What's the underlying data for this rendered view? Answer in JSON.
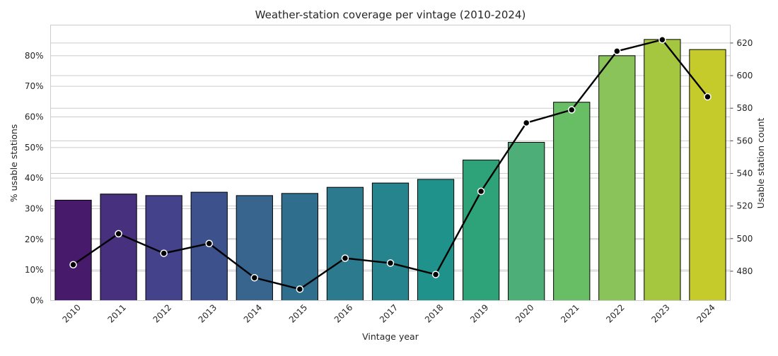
{
  "chart_data": {
    "type": "bar",
    "title": "Weather-station coverage per vintage (2010-2024)",
    "xlabel": "Vintage year",
    "ylabel": "% usable stations",
    "y2label": "Usable station count",
    "categories": [
      "2010",
      "2011",
      "2012",
      "2013",
      "2014",
      "2015",
      "2016",
      "2017",
      "2018",
      "2019",
      "2020",
      "2021",
      "2022",
      "2023",
      "2024"
    ],
    "ylim": [
      0,
      0.9
    ],
    "y_ticks": [
      0,
      0.1,
      0.2,
      0.3,
      0.4,
      0.5,
      0.6,
      0.7,
      0.8
    ],
    "y_tick_labels": [
      "0%",
      "10%",
      "20%",
      "30%",
      "40%",
      "50%",
      "60%",
      "70%",
      "80%"
    ],
    "y2lim": [
      462,
      631
    ],
    "y2_ticks": [
      480,
      500,
      520,
      540,
      560,
      580,
      600,
      620
    ],
    "grid": true,
    "series": [
      {
        "type": "bar",
        "axis": "left",
        "values": [
          0.328,
          0.348,
          0.343,
          0.354,
          0.343,
          0.35,
          0.37,
          0.384,
          0.396,
          0.459,
          0.517,
          0.648,
          0.8,
          0.853,
          0.82
        ],
        "colors": [
          "#481a6c",
          "#47307e",
          "#43428a",
          "#3d528c",
          "#37658e",
          "#306e8e",
          "#2b7a8e",
          "#25848e",
          "#20928c",
          "#2ea37a",
          "#4dae77",
          "#68be64",
          "#89c35a",
          "#a5c63f",
          "#c4cb2b"
        ]
      },
      {
        "type": "line",
        "axis": "right",
        "color": "#000000",
        "values": [
          484,
          503,
          491,
          497,
          476,
          469,
          488,
          485,
          478,
          529,
          571,
          579,
          615,
          622,
          587
        ]
      }
    ]
  }
}
